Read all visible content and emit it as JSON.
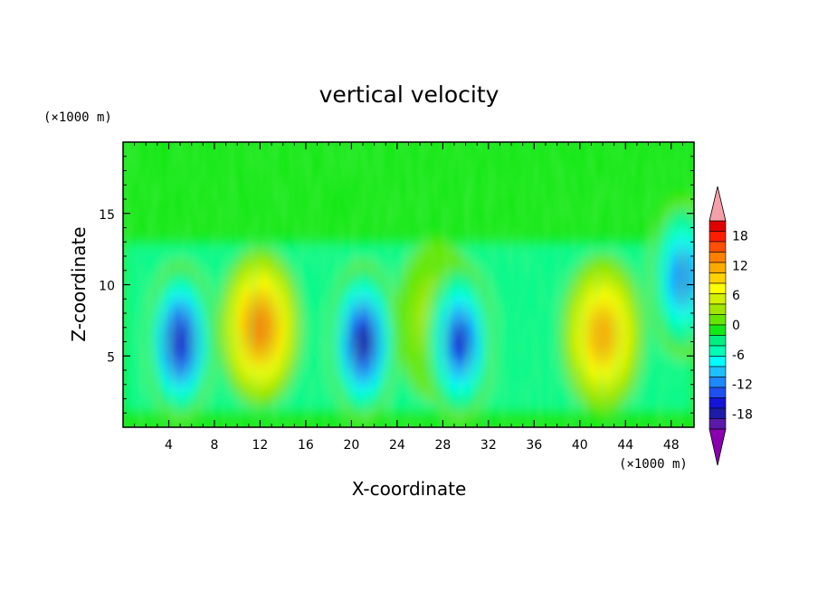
{
  "chart_data": {
    "type": "heatmap",
    "title": "vertical velocity",
    "xlabel": "X-coordinate",
    "ylabel": "Z-coordinate",
    "x_unit": "(×1000 m)",
    "y_unit": "(×1000 m)",
    "xlim": [
      0,
      50
    ],
    "ylim": [
      0,
      20
    ],
    "x_ticks": [
      4,
      8,
      12,
      16,
      20,
      24,
      28,
      32,
      36,
      40,
      44,
      48
    ],
    "y_ticks": [
      5,
      10,
      15
    ],
    "colorbar": {
      "min": -21,
      "max": 21,
      "labels": [
        18,
        12,
        6,
        0,
        -6,
        -12,
        -18
      ],
      "extend": "both",
      "colors": [
        "#8a00b0",
        "#5a1aa8",
        "#1c1ca8",
        "#1414d8",
        "#1e50f0",
        "#1e88ff",
        "#1cc0ff",
        "#00ffff",
        "#00ffb4",
        "#00f080",
        "#14e814",
        "#64e600",
        "#a0e600",
        "#d2f000",
        "#ffff00",
        "#ffd200",
        "#ffaa00",
        "#ff8000",
        "#ff5000",
        "#ff1e00",
        "#e00000",
        "#f5a0a8"
      ]
    },
    "features": [
      {
        "x": 5,
        "z": 6,
        "w": -16
      },
      {
        "x": 12,
        "z": 7,
        "w": 14
      },
      {
        "x": 21,
        "z": 6,
        "w": -17
      },
      {
        "x": 27.5,
        "z": 7.5,
        "w": 5
      },
      {
        "x": 29.5,
        "z": 6,
        "w": -15
      },
      {
        "x": 42,
        "z": 6.5,
        "w": 11
      },
      {
        "x": 49,
        "z": 10.5,
        "w": -12
      }
    ]
  }
}
